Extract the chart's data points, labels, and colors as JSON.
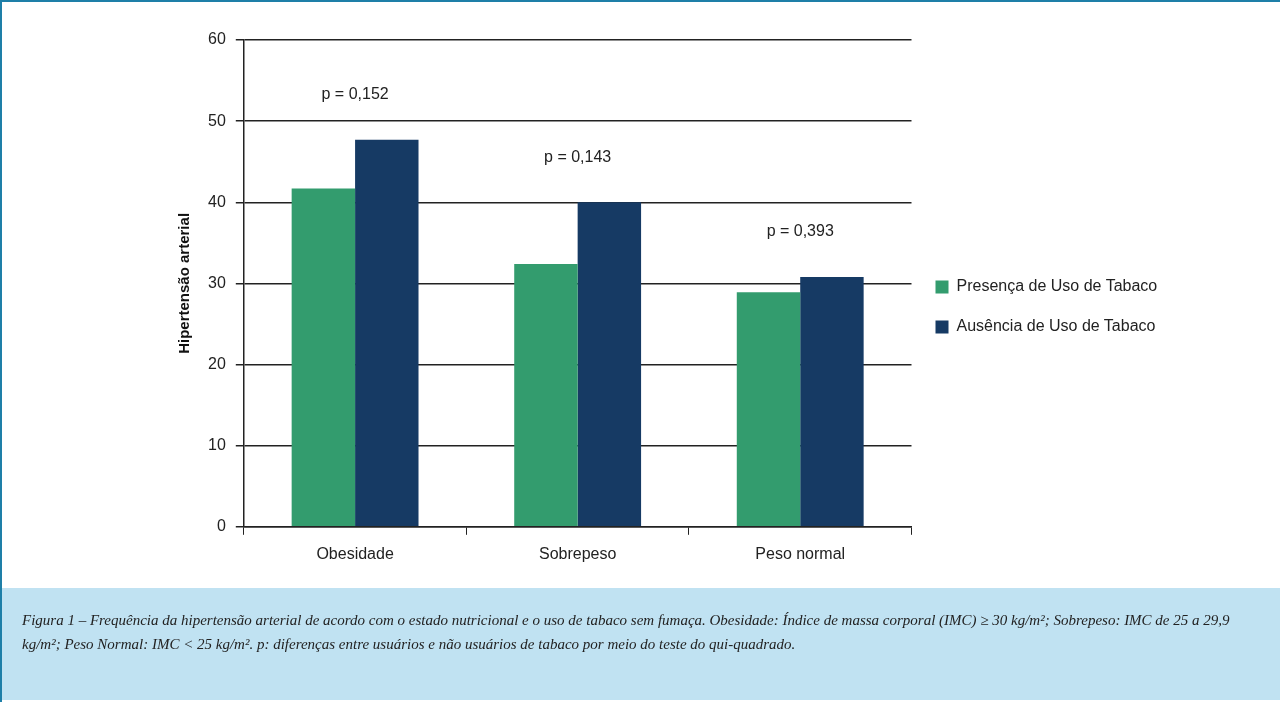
{
  "chart_data": {
    "type": "bar",
    "ylabel": "Hipertensão arterial",
    "categories": [
      "Obesidade",
      "Sobrepeso",
      "Peso normal"
    ],
    "series": [
      {
        "name": "Presença de Uso de Tabaco",
        "color": "#339c6e",
        "values": [
          41.7,
          32.4,
          28.9
        ]
      },
      {
        "name": "Ausência de Uso de Tabaco",
        "color": "#163a64",
        "values": [
          47.7,
          40,
          30.8
        ]
      }
    ],
    "ylim": [
      0,
      60
    ],
    "yticks": [
      0,
      10,
      20,
      30,
      40,
      50,
      60
    ],
    "grid": "y",
    "legend": "right",
    "annotations": [
      "p = 0,152",
      "p = 0,143",
      "p = 0,393",
      "Figura 1 – Frequência da hipertensão arterial de acordo com o estado nutricional e o uso de tabaco sem fumaça. Obesidade: Índice de massa corporal (IMC) ≥ 30 kg/m²; Sobrepeso: IMC de 25 a 29,9 kg/m²; Peso Normal: IMC < 25 kg/m². p: diferenças entre usuários e não usuários de tabaco por meio do teste do qui-quadrado."
    ]
  }
}
